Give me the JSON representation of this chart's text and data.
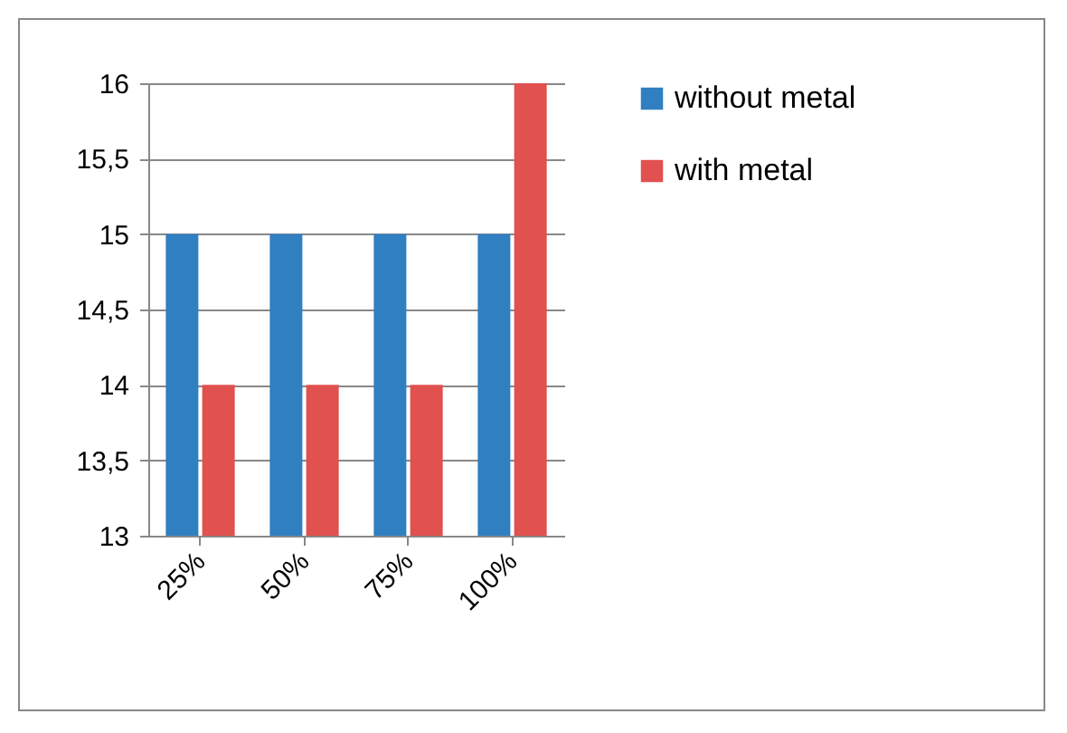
{
  "chart_data": {
    "type": "bar",
    "categories": [
      "25%",
      "50%",
      "75%",
      "100%"
    ],
    "series": [
      {
        "name": "without metal",
        "color": "#2f7fc1",
        "values": [
          15,
          15,
          15,
          15
        ]
      },
      {
        "name": "with metal",
        "color": "#e0514f",
        "values": [
          14,
          14,
          14,
          16
        ]
      }
    ],
    "ylim": [
      13,
      16
    ],
    "yticks": [
      13,
      {
        "value": 13.5,
        "label": "13,5"
      },
      14,
      {
        "value": 14.5,
        "label": "14,5"
      },
      15,
      {
        "value": 15.5,
        "label": "15,5"
      },
      16
    ],
    "grid": "y",
    "legend": "right"
  }
}
